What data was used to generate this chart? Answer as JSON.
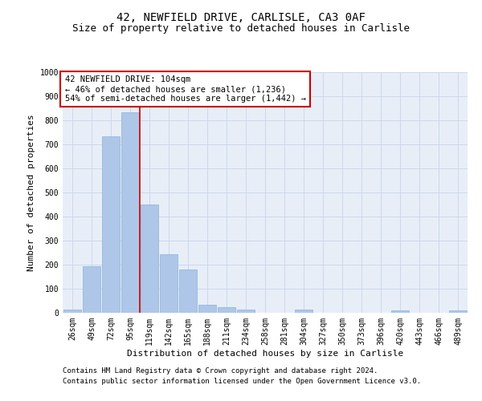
{
  "title_line1": "42, NEWFIELD DRIVE, CARLISLE, CA3 0AF",
  "title_line2": "Size of property relative to detached houses in Carlisle",
  "xlabel": "Distribution of detached houses by size in Carlisle",
  "ylabel": "Number of detached properties",
  "categories": [
    "26sqm",
    "49sqm",
    "72sqm",
    "95sqm",
    "119sqm",
    "142sqm",
    "165sqm",
    "188sqm",
    "211sqm",
    "234sqm",
    "258sqm",
    "281sqm",
    "304sqm",
    "327sqm",
    "350sqm",
    "373sqm",
    "396sqm",
    "420sqm",
    "443sqm",
    "466sqm",
    "489sqm"
  ],
  "values": [
    12,
    195,
    735,
    835,
    450,
    245,
    180,
    35,
    22,
    12,
    0,
    0,
    12,
    0,
    0,
    0,
    0,
    10,
    0,
    0,
    10
  ],
  "bar_color": "#aec6e8",
  "bar_edgecolor": "#8ab4d8",
  "annotation_text": "42 NEWFIELD DRIVE: 104sqm\n← 46% of detached houses are smaller (1,236)\n54% of semi-detached houses are larger (1,442) →",
  "annotation_box_edgecolor": "#cc0000",
  "annotation_box_facecolor": "#ffffff",
  "vline_x": 3.5,
  "vline_color": "#cc0000",
  "ylim": [
    0,
    1000
  ],
  "yticks": [
    0,
    100,
    200,
    300,
    400,
    500,
    600,
    700,
    800,
    900,
    1000
  ],
  "grid_color": "#c8d4e8",
  "bg_color": "#e8eef8",
  "footer_line1": "Contains HM Land Registry data © Crown copyright and database right 2024.",
  "footer_line2": "Contains public sector information licensed under the Open Government Licence v3.0.",
  "title_fontsize": 10,
  "subtitle_fontsize": 9,
  "axis_label_fontsize": 8,
  "tick_fontsize": 7,
  "annotation_fontsize": 7.5,
  "footer_fontsize": 6.5
}
